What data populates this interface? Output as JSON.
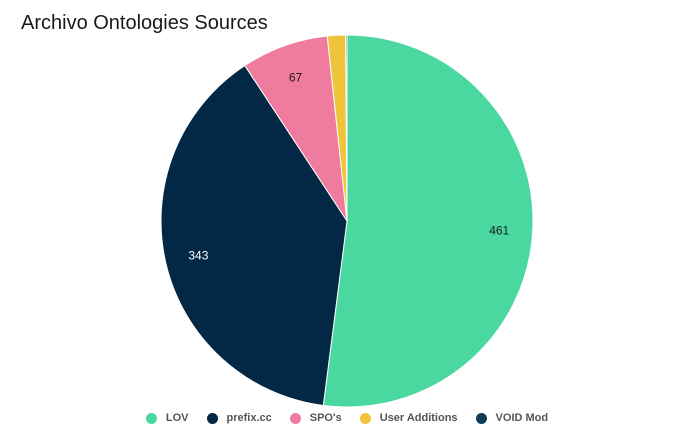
{
  "chart_data": {
    "type": "pie",
    "title": "Archivo Ontologies Sources",
    "legend_position": "bottom",
    "slices": [
      {
        "name": "LOV",
        "value": 461,
        "color": "#4ad7a0",
        "label": "461",
        "label_color": "#1a1a1a"
      },
      {
        "name": "prefix.cc",
        "value": 343,
        "color": "#022845",
        "label": "343",
        "label_color": "#ffffff"
      },
      {
        "name": "SPO's",
        "value": 67,
        "color": "#ef7b9e",
        "label": "67",
        "label_color": "#1a1a1a"
      },
      {
        "name": "User Additions",
        "value": 14,
        "color": "#f0c43a",
        "label": "",
        "label_color": "#1a1a1a"
      },
      {
        "name": "VOID Mod",
        "value": 1,
        "color": "#0e3b56",
        "label": "",
        "label_color": "#ffffff"
      }
    ]
  }
}
